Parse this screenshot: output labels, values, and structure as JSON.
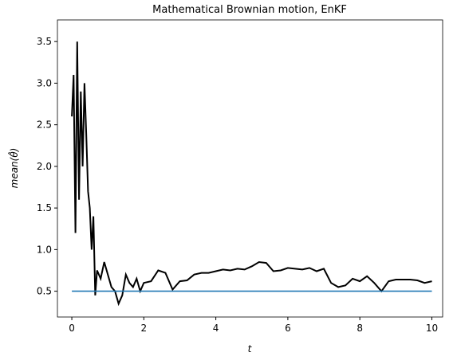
{
  "chart_data": {
    "type": "line",
    "title": "Mathematical Brownian motion, EnKF",
    "xlabel": "t",
    "ylabel": "mean(θ̂)",
    "xlim": [
      -0.4,
      10.3
    ],
    "ylim": [
      0.19,
      3.76
    ],
    "xticks": [
      0,
      2,
      4,
      6,
      8,
      10
    ],
    "yticks": [
      0.5,
      {
        "value": 1.0,
        "label": "1.0"
      },
      1.5,
      {
        "value": 2.0,
        "label": "2.0"
      },
      2.5,
      {
        "value": 3.0,
        "label": "3.0"
      },
      3.5
    ],
    "series": [
      {
        "color": "#000000",
        "x": [
          0,
          0.05,
          0.1,
          0.15,
          0.2,
          0.25,
          0.3,
          0.35,
          0.4,
          0.45,
          0.5,
          0.55,
          0.6,
          0.65,
          0.7,
          0.8,
          0.9,
          1.0,
          1.1,
          1.2,
          1.3,
          1.4,
          1.5,
          1.6,
          1.7,
          1.8,
          1.9,
          2.0,
          2.2,
          2.4,
          2.6,
          2.8,
          3.0,
          3.2,
          3.4,
          3.6,
          3.8,
          4.0,
          4.2,
          4.4,
          4.6,
          4.8,
          5.0,
          5.2,
          5.4,
          5.6,
          5.8,
          6.0,
          6.2,
          6.4,
          6.6,
          6.8,
          7.0,
          7.2,
          7.4,
          7.6,
          7.8,
          8.0,
          8.2,
          8.4,
          8.6,
          8.8,
          9.0,
          9.2,
          9.4,
          9.6,
          9.8,
          10.0
        ],
        "values": [
          2.6,
          3.1,
          1.2,
          3.5,
          1.6,
          2.9,
          2.0,
          3.0,
          2.4,
          1.7,
          1.5,
          1.0,
          1.4,
          0.45,
          0.75,
          0.65,
          0.85,
          0.7,
          0.55,
          0.5,
          0.35,
          0.45,
          0.7,
          0.6,
          0.55,
          0.65,
          0.5,
          0.6,
          0.62,
          0.75,
          0.72,
          0.52,
          0.62,
          0.63,
          0.7,
          0.72,
          0.72,
          0.74,
          0.76,
          0.75,
          0.77,
          0.76,
          0.8,
          0.85,
          0.84,
          0.74,
          0.75,
          0.78,
          0.77,
          0.76,
          0.78,
          0.74,
          0.77,
          0.6,
          0.55,
          0.57,
          0.65,
          0.62,
          0.68,
          0.6,
          0.5,
          0.62,
          0.64,
          0.64,
          0.64,
          0.63,
          0.6,
          0.62
        ]
      },
      {
        "color": "#1f77b4",
        "x": [
          0,
          10
        ],
        "values": [
          0.5,
          0.5
        ]
      }
    ]
  }
}
